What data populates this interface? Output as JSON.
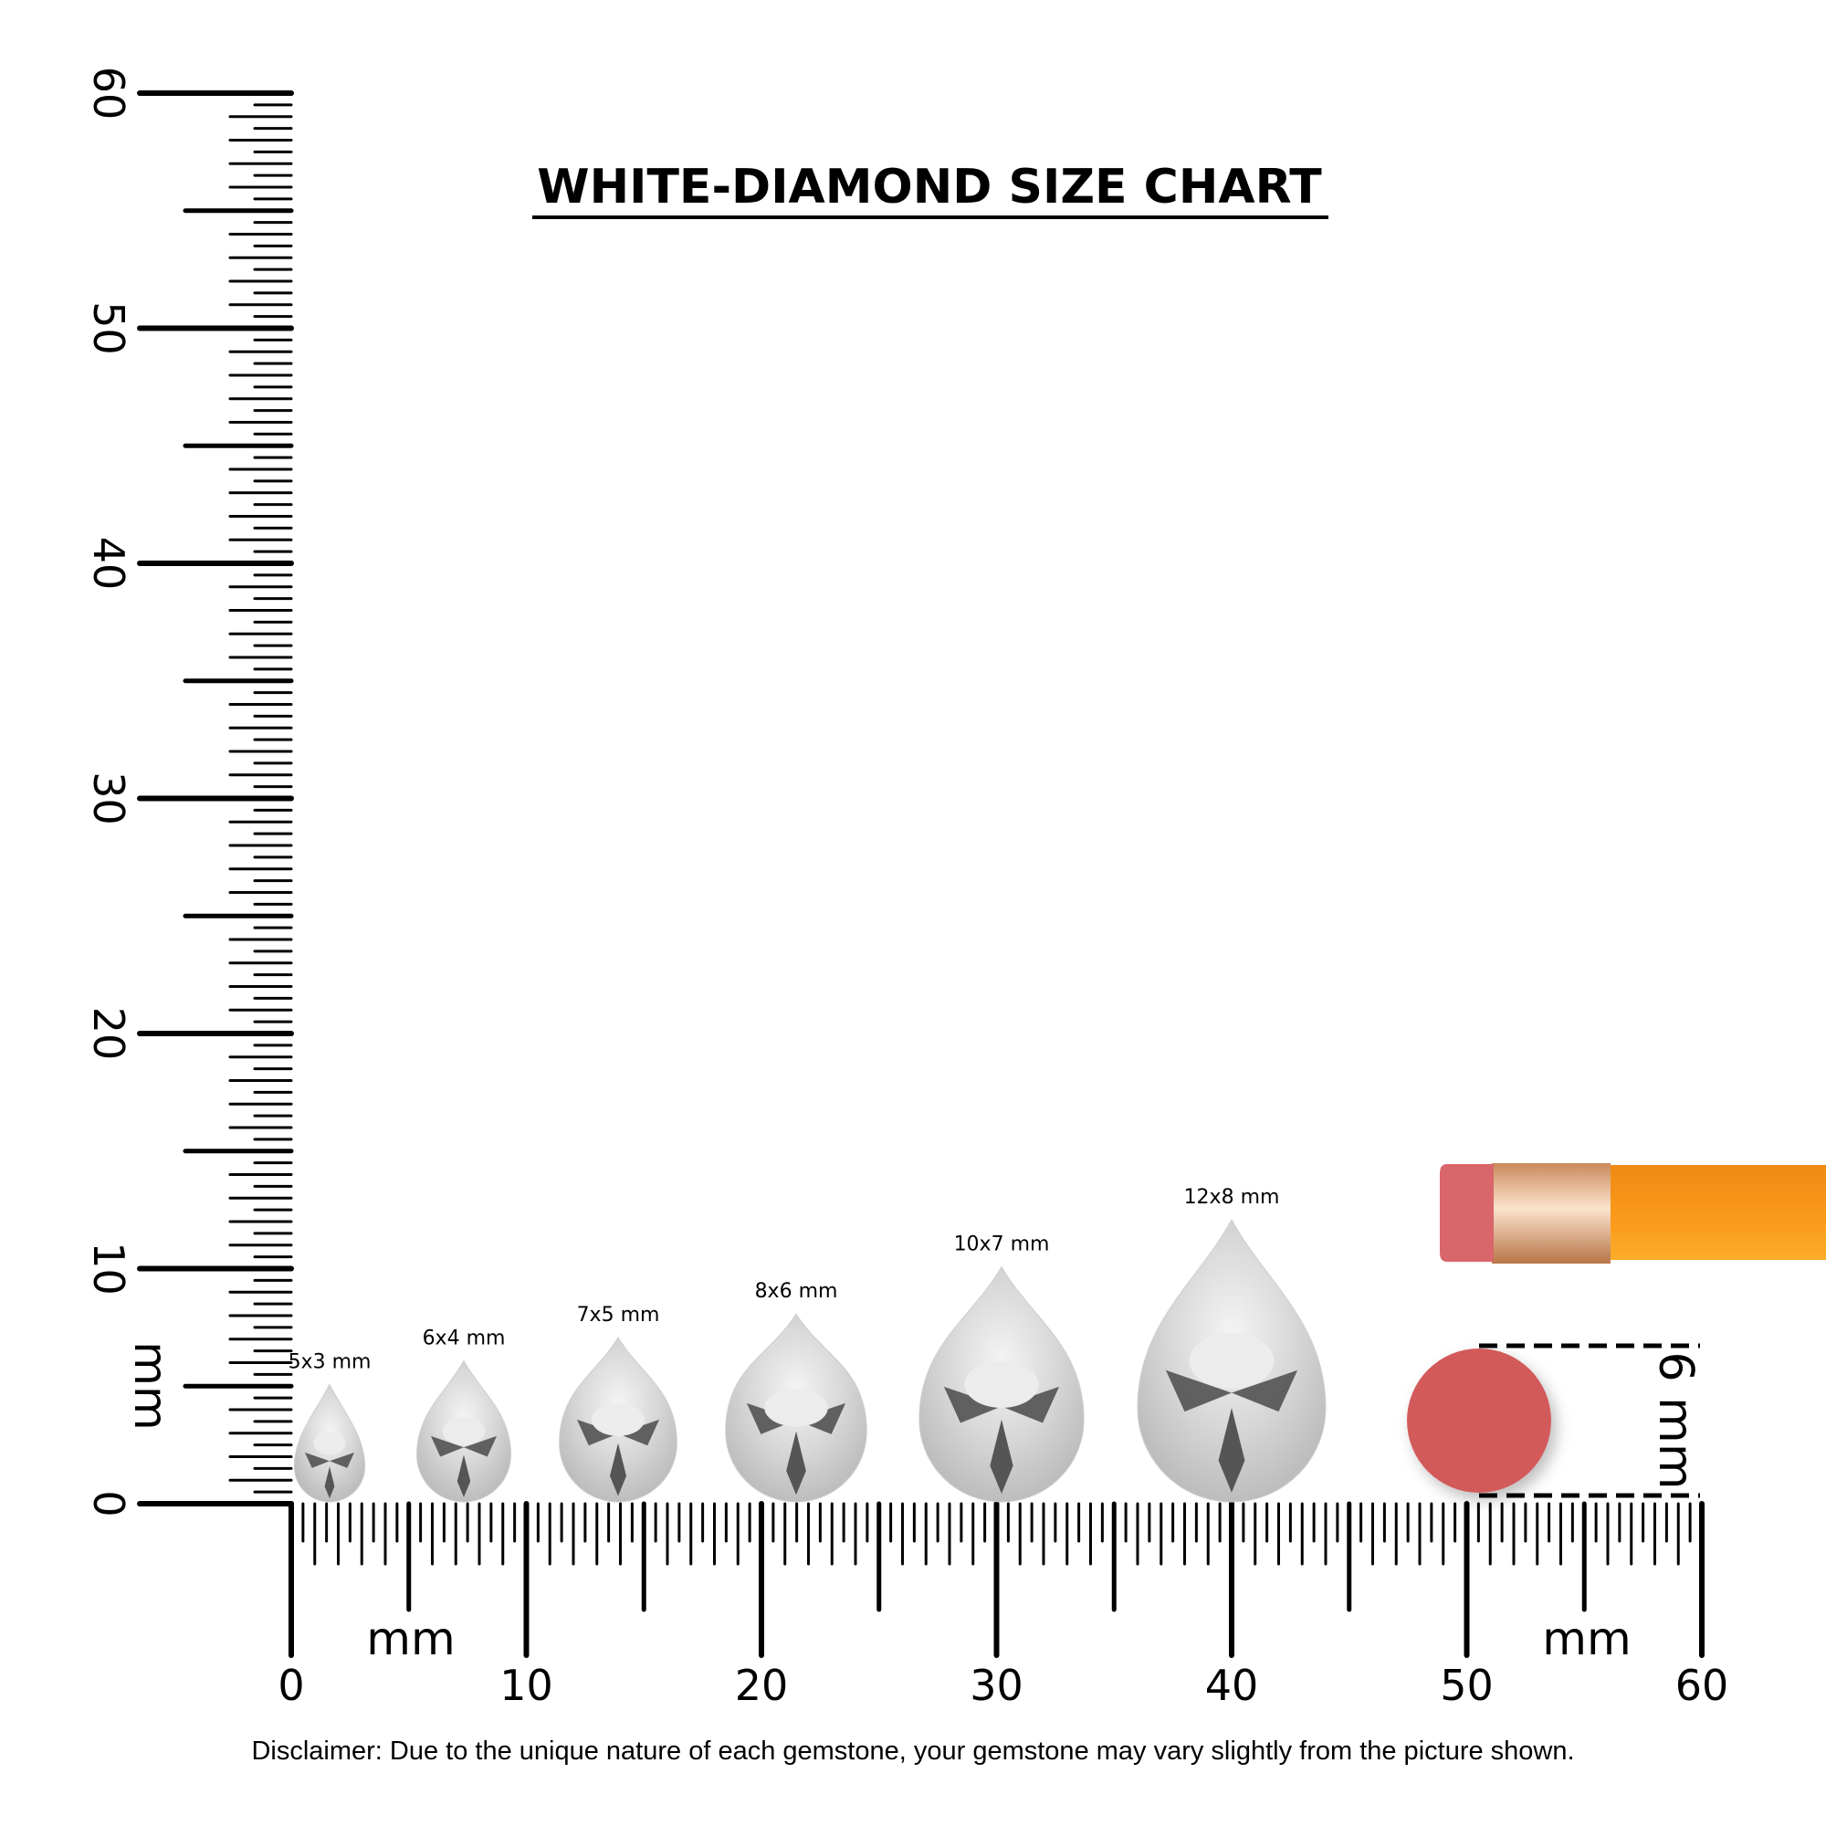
{
  "title": "WHITE-DIAMOND SIZE CHART",
  "disclaimer": "Disclaimer: Due to the unique nature of each gemstone, your gemstone may vary slightly from the picture shown.",
  "rulers": {
    "unit_label": "mm",
    "range_mm": [
      0,
      60
    ],
    "vertical_tick_labels": [
      "0",
      "10",
      "20",
      "30",
      "40",
      "50",
      "60"
    ],
    "horizontal_tick_labels": [
      "0",
      "10",
      "20",
      "30",
      "40",
      "50",
      "60"
    ]
  },
  "gems": [
    {
      "label": "5x3 mm",
      "length_mm": 5,
      "width_mm": 3
    },
    {
      "label": "6x4 mm",
      "length_mm": 6,
      "width_mm": 4
    },
    {
      "label": "7x5 mm",
      "length_mm": 7,
      "width_mm": 5
    },
    {
      "label": "8x6 mm",
      "length_mm": 8,
      "width_mm": 6
    },
    {
      "label": "10x7 mm",
      "length_mm": 10,
      "width_mm": 7
    },
    {
      "label": "12x8 mm",
      "length_mm": 12,
      "width_mm": 8
    }
  ],
  "reference": {
    "label": "6 mm",
    "diameter_mm": 6,
    "eraser_color": "#d35a5a",
    "pencil_color": "#f7941d",
    "ferrule_color": "#e0a070"
  }
}
